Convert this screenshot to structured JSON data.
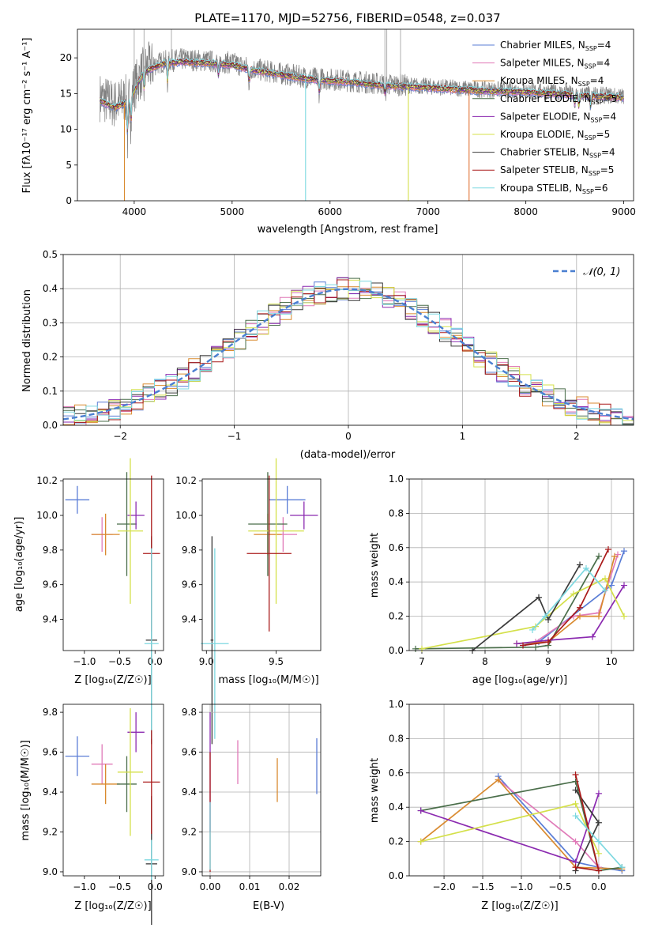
{
  "chart_data": [
    {
      "type": "line",
      "title": "PLATE=1170, MJD=52756, FIBERID=0548, z=0.037",
      "xlabel": "wavelength [Angstrom, rest frame]",
      "ylabel": "Flux [fλ10⁻¹⁷ erg cm⁻² s⁻¹ A⁻¹]",
      "xlim": [
        3420,
        9100
      ],
      "ylim": [
        0,
        24
      ],
      "xticks": [
        4000,
        5000,
        6000,
        7000,
        8000,
        9000
      ],
      "yticks": [
        0,
        5,
        10,
        15,
        20
      ],
      "legend_position": "top-right",
      "grid": false,
      "series": [
        {
          "name": "Chabrier MILES, N_SSP=4",
          "color": "#5a7dd6"
        },
        {
          "name": "Salpeter MILES, N_SSP=4",
          "color": "#e07ab8"
        },
        {
          "name": "Kroupa MILES, N_SSP=4",
          "color": "#d98a2f"
        },
        {
          "name": "Chabrier ELODIE, N_SSP=5",
          "color": "#4a6e4a"
        },
        {
          "name": "Salpeter ELODIE, N_SSP=4",
          "color": "#8b2ab0"
        },
        {
          "name": "Kroupa ELODIE, N_SSP=5",
          "color": "#d4e04a"
        },
        {
          "name": "Chabrier STELIB, N_SSP=4",
          "color": "#3a3a3a"
        },
        {
          "name": "Salpeter STELIB, N_SSP=5",
          "color": "#aa1a1a"
        },
        {
          "name": "Kroupa STELIB, N_SSP=6",
          "color": "#7dd8e0"
        }
      ],
      "data_spectrum": {
        "color": "#808080",
        "knots": [
          [
            3650,
            14.5
          ],
          [
            3800,
            13.5
          ],
          [
            3950,
            14.5
          ],
          [
            4100,
            18.5
          ],
          [
            4300,
            19.5
          ],
          [
            4500,
            19.8
          ],
          [
            4800,
            19.5
          ],
          [
            5000,
            19.3
          ],
          [
            5200,
            18.5
          ],
          [
            5500,
            17.8
          ],
          [
            5800,
            17.2
          ],
          [
            6200,
            16.8
          ],
          [
            6563,
            16.3
          ],
          [
            7000,
            16
          ],
          [
            7500,
            15.6
          ],
          [
            8000,
            15.4
          ],
          [
            8500,
            15
          ],
          [
            9000,
            14.6
          ]
        ]
      },
      "model_spectrum": {
        "knots": [
          [
            3650,
            14
          ],
          [
            3800,
            13
          ],
          [
            3950,
            14
          ],
          [
            4100,
            18
          ],
          [
            4300,
            19.2
          ],
          [
            4500,
            19.4
          ],
          [
            4800,
            19.2
          ],
          [
            5000,
            19
          ],
          [
            5200,
            18.3
          ],
          [
            5500,
            17.6
          ],
          [
            5800,
            17
          ],
          [
            6200,
            16.6
          ],
          [
            6563,
            16.1
          ],
          [
            7000,
            15.8
          ],
          [
            7500,
            15.4
          ],
          [
            8000,
            15.2
          ],
          [
            8500,
            14.8
          ],
          [
            9000,
            14.4
          ]
        ]
      }
    },
    {
      "type": "line",
      "xlabel": "(data-model)/error",
      "ylabel": "Normed distribution",
      "xlim": [
        -2.5,
        2.5
      ],
      "ylim": [
        0,
        0.5
      ],
      "xticks": [
        -2,
        -1,
        0,
        1,
        2
      ],
      "yticks": [
        0.0,
        0.1,
        0.2,
        0.3,
        0.4,
        0.5
      ],
      "grid": true,
      "legend_position": "top-right",
      "reference_curve": {
        "name": "𝒩(0, 1)",
        "color": "#4a7fd1",
        "style": "dashed"
      },
      "histogram": {
        "bin_width": 0.1,
        "bin_start": -2.5,
        "bins": 50
      },
      "series_colors": [
        "#5a7dd6",
        "#e07ab8",
        "#d98a2f",
        "#4a6e4a",
        "#8b2ab0",
        "#d4e04a",
        "#3a3a3a",
        "#aa1a1a",
        "#7dd8e0"
      ]
    },
    {
      "type": "scatter",
      "xlabel": "Z [log₁₀(Z/Z☉)]",
      "ylabel": "age  [log₁₀(age/yr)]",
      "xlim": [
        -1.3,
        0.12
      ],
      "ylim": [
        9.22,
        10.21
      ],
      "xticks": [
        -1.0,
        -0.5,
        0.0
      ],
      "yticks": [
        9.4,
        9.6,
        9.8,
        10.0,
        10.2
      ],
      "grid": false,
      "errorbars": [
        {
          "color": "#5a7dd6",
          "x": -1.1,
          "xerr": 0.17,
          "y": 10.09,
          "yerr": 0.08
        },
        {
          "color": "#e07ab8",
          "x": -0.75,
          "xerr": 0.15,
          "y": 9.89,
          "yerr": 0.1
        },
        {
          "color": "#d98a2f",
          "x": -0.7,
          "xerr": 0.2,
          "y": 9.89,
          "yerr": 0.12
        },
        {
          "color": "#4a6e4a",
          "x": -0.4,
          "xerr": 0.14,
          "y": 9.95,
          "yerr": 0.3
        },
        {
          "color": "#8b2ab0",
          "x": -0.27,
          "xerr": 0.12,
          "y": 10.0,
          "yerr": 0.08
        },
        {
          "color": "#d4e04a",
          "x": -0.35,
          "xerr": 0.18,
          "y": 9.91,
          "yerr": 0.42
        },
        {
          "color": "#3a3a3a",
          "x": -0.05,
          "xerr": 0.08,
          "y": 9.28,
          "yerr": 0.6
        },
        {
          "color": "#aa1a1a",
          "x": -0.05,
          "xerr": 0.12,
          "y": 9.78,
          "yerr": 0.45
        },
        {
          "color": "#7dd8e0",
          "x": -0.05,
          "xerr": 0.1,
          "y": 9.26,
          "yerr": 0.55
        }
      ]
    },
    {
      "type": "scatter",
      "xlabel": "mass [log₁₀(M/M☉)]",
      "xlim": [
        8.97,
        9.82
      ],
      "ylim": [
        9.22,
        10.21
      ],
      "xticks": [
        9.0,
        9.5
      ],
      "yticks": [
        9.4,
        9.6,
        9.8,
        10.0,
        10.2
      ],
      "grid": false,
      "errorbars": [
        {
          "color": "#5a7dd6",
          "x": 9.58,
          "xerr": 0.13,
          "y": 10.09,
          "yerr": 0.08
        },
        {
          "color": "#e07ab8",
          "x": 9.55,
          "xerr": 0.1,
          "y": 9.89,
          "yerr": 0.1
        },
        {
          "color": "#d98a2f",
          "x": 9.44,
          "xerr": 0.1,
          "y": 9.89,
          "yerr": 0.12
        },
        {
          "color": "#4a6e4a",
          "x": 9.44,
          "xerr": 0.14,
          "y": 9.95,
          "yerr": 0.3
        },
        {
          "color": "#8b2ab0",
          "x": 9.7,
          "xerr": 0.1,
          "y": 10.0,
          "yerr": 0.08
        },
        {
          "color": "#d4e04a",
          "x": 9.5,
          "xerr": 0.2,
          "y": 9.91,
          "yerr": 0.42
        },
        {
          "color": "#3a3a3a",
          "x": 9.04,
          "xerr": 0.01,
          "y": 9.28,
          "yerr": 0.6
        },
        {
          "color": "#aa1a1a",
          "x": 9.45,
          "xerr": 0.16,
          "y": 9.78,
          "yerr": 0.45
        },
        {
          "color": "#7dd8e0",
          "x": 9.06,
          "xerr": 0.1,
          "y": 9.26,
          "yerr": 0.55
        }
      ]
    },
    {
      "type": "line",
      "xlabel": "age  [log₁₀(age/yr)]",
      "ylabel": "mass weight",
      "xlim": [
        6.8,
        10.35
      ],
      "ylim": [
        0,
        1
      ],
      "xticks": [
        7,
        8,
        9,
        10
      ],
      "yticks": [
        0.0,
        0.2,
        0.4,
        0.6,
        0.8,
        1.0
      ],
      "grid": true,
      "series": [
        {
          "color": "#5a7dd6",
          "x": [
            8.6,
            8.85,
            10.0,
            10.2
          ],
          "y": [
            0.03,
            0.05,
            0.38,
            0.58
          ]
        },
        {
          "color": "#e07ab8",
          "x": [
            8.8,
            9.4,
            9.8,
            10.1
          ],
          "y": [
            0.05,
            0.2,
            0.22,
            0.56
          ]
        },
        {
          "color": "#d98a2f",
          "x": [
            8.5,
            9.0,
            9.5,
            9.8,
            10.05
          ],
          "y": [
            0.04,
            0.05,
            0.2,
            0.2,
            0.55
          ]
        },
        {
          "color": "#4a6e4a",
          "x": [
            6.9,
            8.8,
            9.0,
            9.8
          ],
          "y": [
            0.01,
            0.02,
            0.03,
            0.55
          ]
        },
        {
          "color": "#8b2ab0",
          "x": [
            8.5,
            9.0,
            9.7,
            10.2
          ],
          "y": [
            0.04,
            0.06,
            0.08,
            0.38
          ]
        },
        {
          "color": "#d4e04a",
          "x": [
            7.0,
            8.8,
            9.4,
            9.9,
            10.2
          ],
          "y": [
            0.01,
            0.14,
            0.33,
            0.42,
            0.2
          ]
        },
        {
          "color": "#3a3a3a",
          "x": [
            7.8,
            8.85,
            9.0,
            9.5
          ],
          "y": [
            0.0,
            0.31,
            0.18,
            0.5
          ]
        },
        {
          "color": "#aa1a1a",
          "x": [
            8.6,
            9.0,
            9.5,
            9.95
          ],
          "y": [
            0.03,
            0.05,
            0.25,
            0.59
          ]
        },
        {
          "color": "#7dd8e0",
          "x": [
            8.75,
            8.95,
            9.6,
            9.9
          ],
          "y": [
            0.12,
            0.2,
            0.48,
            0.35
          ]
        }
      ]
    },
    {
      "type": "scatter",
      "xlabel": "Z [log₁₀(Z/Z☉)]",
      "ylabel": "mass [log₁₀(M/M☉)]",
      "xlim": [
        -1.3,
        0.12
      ],
      "ylim": [
        8.98,
        9.84
      ],
      "xticks": [
        -1.0,
        -0.5,
        0.0
      ],
      "yticks": [
        9.0,
        9.2,
        9.4,
        9.6,
        9.8
      ],
      "grid": false,
      "errorbars": [
        {
          "color": "#5a7dd6",
          "x": -1.1,
          "xerr": 0.17,
          "y": 9.58,
          "yerr": 0.1
        },
        {
          "color": "#e07ab8",
          "x": -0.75,
          "xerr": 0.15,
          "y": 9.54,
          "yerr": 0.1
        },
        {
          "color": "#d98a2f",
          "x": -0.7,
          "xerr": 0.2,
          "y": 9.44,
          "yerr": 0.1
        },
        {
          "color": "#4a6e4a",
          "x": -0.4,
          "xerr": 0.14,
          "y": 9.44,
          "yerr": 0.14
        },
        {
          "color": "#8b2ab0",
          "x": -0.27,
          "xerr": 0.12,
          "y": 9.7,
          "yerr": 0.1
        },
        {
          "color": "#d4e04a",
          "x": -0.35,
          "xerr": 0.18,
          "y": 9.5,
          "yerr": 0.32
        },
        {
          "color": "#3a3a3a",
          "x": -0.05,
          "xerr": 0.08,
          "y": 9.04,
          "yerr": 0.34
        },
        {
          "color": "#aa1a1a",
          "x": -0.05,
          "xerr": 0.12,
          "y": 9.45,
          "yerr": 0.26
        },
        {
          "color": "#7dd8e0",
          "x": -0.05,
          "xerr": 0.1,
          "y": 9.06,
          "yerr": 0.1
        }
      ]
    },
    {
      "type": "scatter",
      "xlabel": "E(B-V)",
      "xlim": [
        -0.002,
        0.028
      ],
      "ylim": [
        8.98,
        9.84
      ],
      "xticks": [
        0.0,
        0.01,
        0.02
      ],
      "yticks": [
        9.0,
        9.2,
        9.4,
        9.6,
        9.8
      ],
      "grid": true,
      "errorbars": [
        {
          "color": "#5a7dd6",
          "x": 0.027,
          "xerr": 0,
          "y": 9.53,
          "yerr": 0.14
        },
        {
          "color": "#e07ab8",
          "x": 0.007,
          "xerr": 0,
          "y": 9.55,
          "yerr": 0.11
        },
        {
          "color": "#d98a2f",
          "x": 0.017,
          "xerr": 0,
          "y": 9.46,
          "yerr": 0.11
        },
        {
          "color": "#8b2ab0",
          "x": 0.0,
          "xerr": 0,
          "y": 9.5,
          "yerr": 0.3
        },
        {
          "color": "#aa1a1a",
          "x": 0.0,
          "xerr": 0,
          "y": 9.3,
          "yerr": 0.3
        },
        {
          "color": "#7dd8e0",
          "x": 0.0,
          "xerr": 0,
          "y": 9.18,
          "yerr": 0.17
        }
      ]
    },
    {
      "type": "line",
      "xlabel": "Z [log₁₀(Z/Z☉)]",
      "ylabel": "mass weight",
      "xlim": [
        -2.45,
        0.45
      ],
      "ylim": [
        0,
        1
      ],
      "xticks": [
        -2.0,
        -1.5,
        -1.0,
        -0.5,
        0.0
      ],
      "yticks": [
        0.0,
        0.2,
        0.4,
        0.6,
        0.8,
        1.0
      ],
      "grid": true,
      "series": [
        {
          "color": "#5a7dd6",
          "x": [
            -1.3,
            -0.3,
            0.0,
            0.3
          ],
          "y": [
            0.58,
            0.08,
            0.05,
            0.03
          ]
        },
        {
          "color": "#e07ab8",
          "x": [
            -1.3,
            -0.3,
            0.0
          ],
          "y": [
            0.56,
            0.2,
            0.05
          ]
        },
        {
          "color": "#d98a2f",
          "x": [
            -2.3,
            -1.3,
            -0.3,
            0.3
          ],
          "y": [
            0.2,
            0.56,
            0.05,
            0.04
          ]
        },
        {
          "color": "#4a6e4a",
          "x": [
            -2.3,
            -0.3,
            0.0,
            0.3
          ],
          "y": [
            0.38,
            0.55,
            0.03,
            0.05
          ]
        },
        {
          "color": "#8b2ab0",
          "x": [
            -2.3,
            -0.3,
            0.0
          ],
          "y": [
            0.38,
            0.08,
            0.48
          ]
        },
        {
          "color": "#d4e04a",
          "x": [
            -2.3,
            -0.3,
            0.0
          ],
          "y": [
            0.2,
            0.42,
            0.13
          ]
        },
        {
          "color": "#3a3a3a",
          "x": [
            -0.3,
            0.0,
            -0.3
          ],
          "y": [
            0.5,
            0.31,
            0.03
          ]
        },
        {
          "color": "#aa1a1a",
          "x": [
            -0.3,
            0.0,
            -0.3
          ],
          "y": [
            0.59,
            0.03,
            0.05
          ]
        },
        {
          "color": "#7dd8e0",
          "x": [
            -0.3,
            0.0,
            0.3
          ],
          "y": [
            0.35,
            0.2,
            0.05
          ]
        }
      ]
    }
  ]
}
